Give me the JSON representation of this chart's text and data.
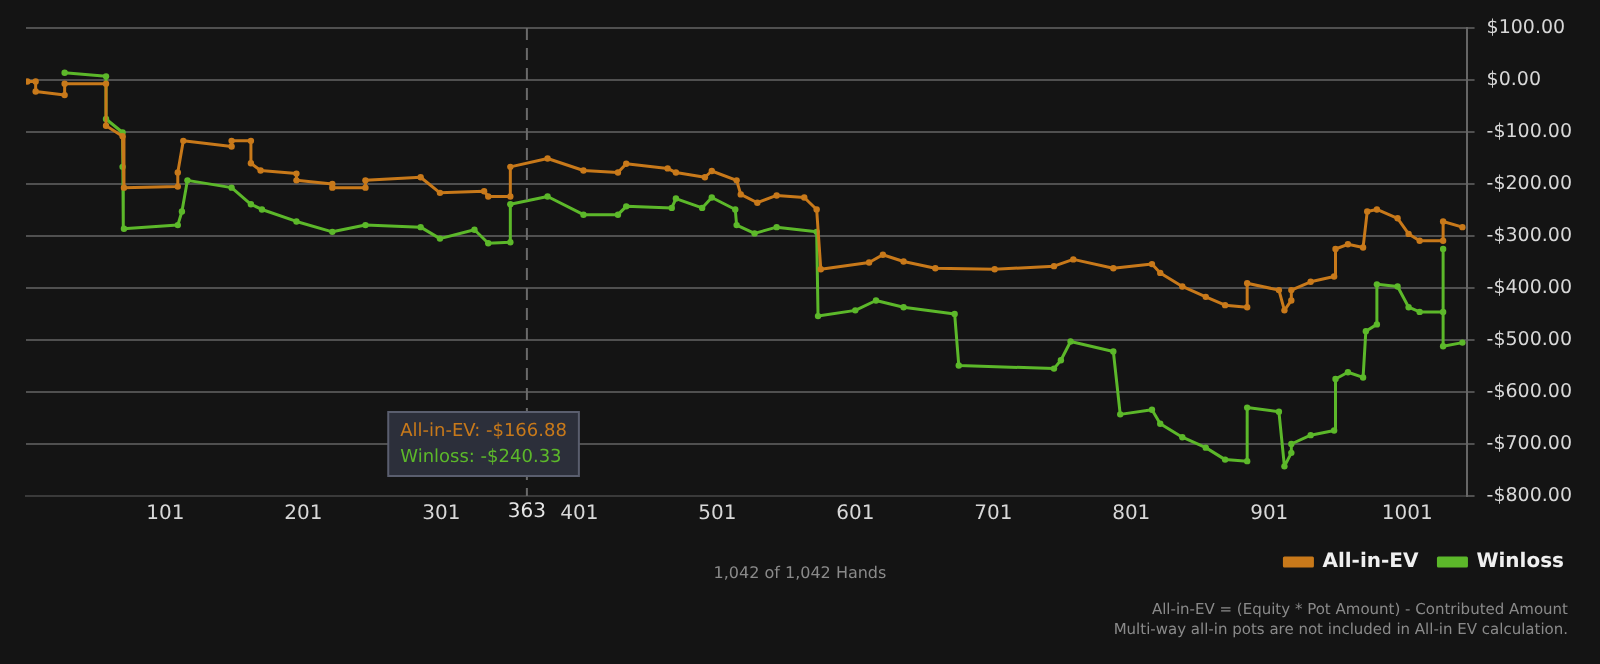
{
  "chart_data": {
    "type": "line",
    "xlim": [
      0,
      1044
    ],
    "ylim": [
      -800,
      100
    ],
    "xticks": [
      101,
      201,
      301,
      401,
      501,
      601,
      701,
      801,
      901,
      1001
    ],
    "yticks": [
      {
        "value": 100,
        "label": "$100.00"
      },
      {
        "value": 0,
        "label": "$0.00"
      },
      {
        "value": -100,
        "label": "-$100.00"
      },
      {
        "value": -200,
        "label": "-$200.00"
      },
      {
        "value": -300,
        "label": "-$300.00"
      },
      {
        "value": -400,
        "label": "-$400.00"
      },
      {
        "value": -500,
        "label": "-$500.00"
      },
      {
        "value": -600,
        "label": "-$600.00"
      },
      {
        "value": -700,
        "label": "-$700.00"
      },
      {
        "value": -800,
        "label": "-$800.00"
      }
    ],
    "grid": "y",
    "legend": "bottom right",
    "marker": "circle",
    "line_style": "solid",
    "series": [
      {
        "name": "All-in-EV",
        "color": "#c8791a",
        "x": [
          1,
          7,
          7,
          28,
          28,
          58,
          58,
          70,
          71,
          110,
          110,
          114,
          149,
          149,
          163,
          163,
          170,
          196,
          196,
          222,
          222,
          246,
          246,
          286,
          300,
          332,
          335,
          351,
          351,
          378,
          404,
          429,
          435,
          465,
          471,
          492,
          497,
          515,
          518,
          530,
          544,
          564,
          573,
          576,
          611,
          621,
          636,
          659,
          702,
          745,
          759,
          788,
          816,
          822,
          838,
          855,
          869,
          885,
          885,
          908,
          912,
          917,
          917,
          931,
          948,
          949,
          958,
          969,
          972,
          979,
          994,
          1002,
          1010,
          1027,
          1027,
          1041
        ],
        "values": [
          -3,
          -3,
          -22,
          -29,
          -7,
          -7,
          -88,
          -108,
          -207,
          -205,
          -178,
          -117,
          -128,
          -117,
          -117,
          -160,
          -174,
          -180,
          -193,
          -200,
          -207,
          -207,
          -193,
          -187,
          -217,
          -214,
          -224,
          -224,
          -167,
          -151,
          -174,
          -178,
          -161,
          -170,
          -178,
          -187,
          -175,
          -193,
          -220,
          -236,
          -222,
          -226,
          -249,
          -364,
          -351,
          -336,
          -349,
          -362,
          -364,
          -358,
          -345,
          -362,
          -354,
          -371,
          -397,
          -417,
          -433,
          -437,
          -391,
          -404,
          -443,
          -424,
          -404,
          -388,
          -378,
          -325,
          -316,
          -322,
          -253,
          -249,
          -266,
          -296,
          -309,
          -309,
          -272,
          -283
        ]
      },
      {
        "name": "Winloss",
        "color": "#5cb82a",
        "x": [
          28,
          58,
          58,
          70,
          70,
          71,
          110,
          113,
          117,
          149,
          163,
          171,
          196,
          222,
          246,
          286,
          300,
          325,
          335,
          351,
          351,
          378,
          404,
          429,
          435,
          468,
          471,
          490,
          497,
          514,
          515,
          528,
          544,
          573,
          574,
          601,
          616,
          636,
          673,
          676,
          745,
          750,
          757,
          788,
          793,
          816,
          822,
          838,
          855,
          869,
          885,
          885,
          908,
          912,
          917,
          917,
          931,
          948,
          949,
          958,
          969,
          971,
          979,
          979,
          994,
          1002,
          1010,
          1027,
          1027,
          1027,
          1041
        ],
        "values": [
          14,
          7,
          -75,
          -101,
          -167,
          -286,
          -279,
          -253,
          -193,
          -207,
          -239,
          -249,
          -272,
          -292,
          -279,
          -283,
          -305,
          -288,
          -314,
          -312,
          -239,
          -224,
          -259,
          -259,
          -243,
          -246,
          -228,
          -246,
          -226,
          -249,
          -279,
          -295,
          -283,
          -292,
          -454,
          -443,
          -424,
          -437,
          -450,
          -549,
          -555,
          -539,
          -503,
          -522,
          -643,
          -634,
          -661,
          -687,
          -707,
          -730,
          -733,
          -630,
          -638,
          -743,
          -717,
          -700,
          -683,
          -674,
          -575,
          -562,
          -572,
          -483,
          -470,
          -393,
          -397,
          -437,
          -446,
          -446,
          -325,
          -512,
          -505
        ]
      }
    ],
    "ref_lines": [
      {
        "axis": "x",
        "value": 363,
        "label": "363"
      }
    ],
    "annotations": [
      "All-in-EV: -$166.88",
      "Winloss: -$240.33",
      "1,042 of 1,042 Hands",
      "All-in-EV = (Equity * Pot Amount) - Contributed Amount",
      "Multi-way all-in pots are not included in All-in EV calculation."
    ]
  }
}
